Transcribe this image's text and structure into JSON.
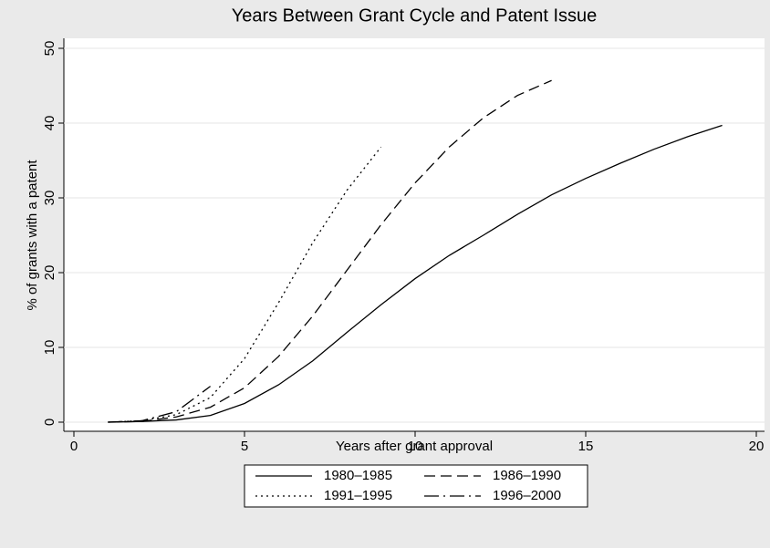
{
  "chart_data": {
    "type": "line",
    "title": "Years Between Grant Cycle and Patent Issue",
    "x_label": "Years after grant approval",
    "y_label": "% of grants with a patent",
    "x": [
      1,
      2,
      3,
      4,
      5,
      6,
      7,
      8,
      9,
      10,
      11,
      12,
      13,
      14,
      15,
      16,
      17,
      18,
      19
    ],
    "series": [
      {
        "name": "1980–1985",
        "color": "#000000",
        "style": "solid",
        "values": [
          0,
          0.1,
          0.3,
          0.9,
          2.5,
          5,
          8.2,
          12,
          15.7,
          19.2,
          22.3,
          25,
          27.8,
          30.4,
          32.6,
          34.6,
          36.5,
          38.2,
          39.7
        ]
      },
      {
        "name": "1986–1990",
        "color": "#000000",
        "style": "dashed",
        "values": [
          0,
          0.1,
          0.7,
          2,
          4.6,
          8.8,
          14.2,
          20.3,
          26.4,
          32,
          36.8,
          40.7,
          43.7,
          45.7,
          null,
          null,
          null,
          null,
          null
        ]
      },
      {
        "name": "1991–1995",
        "color": "#000000",
        "style": "dotted",
        "values": [
          0,
          0.2,
          1,
          3.3,
          8.5,
          16,
          24,
          31,
          36.8,
          null,
          null,
          null,
          null,
          null,
          null,
          null,
          null,
          null,
          null
        ]
      },
      {
        "name": "1996–2000",
        "color": "#000000",
        "style": "dashdot",
        "values": [
          0,
          0.2,
          1.4,
          4.8,
          null,
          null,
          null,
          null,
          null,
          null,
          null,
          null,
          null,
          null,
          null,
          null,
          null,
          null,
          null
        ]
      }
    ],
    "xlim": [
      0,
      20
    ],
    "xticks": [
      0,
      5,
      10,
      15,
      20
    ],
    "ylim": [
      0,
      50
    ],
    "yticks": [
      0,
      10,
      20,
      30,
      40,
      50
    ],
    "grid": true,
    "legend": "bottom"
  }
}
